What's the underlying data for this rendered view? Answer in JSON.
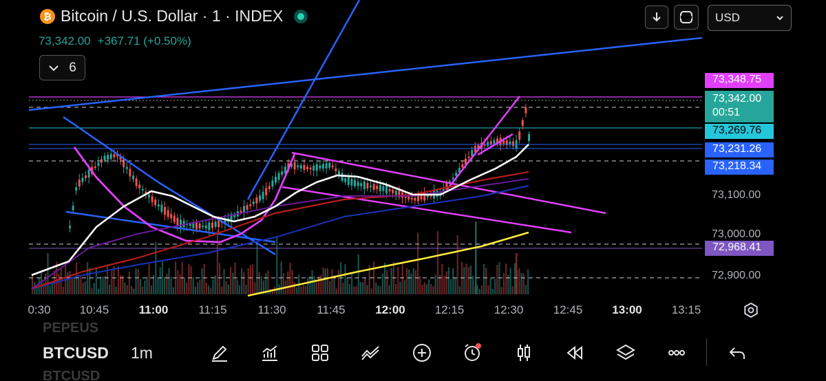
{
  "header": {
    "logo_glyph": "₿",
    "title": "Bitcoin / U.S. Dollar · 1 · INDEX",
    "price": "73,342.00",
    "change": "+367.71 (+0.50%)"
  },
  "indicators_toggle": {
    "count": "6"
  },
  "top_controls": {
    "currency": "USD",
    "download_icon": "download-icon",
    "crosshair_icon": "crosshair-icon"
  },
  "price_labels": [
    {
      "text": "73,348.75",
      "bg": "#e040fb",
      "fg": "#ffffff"
    },
    {
      "text": "73,342.00",
      "sub": "00:51",
      "bg": "#26a69a",
      "fg": "#ffffff"
    },
    {
      "text": "73,269.76",
      "bg": "#26c6da",
      "fg": "#000000"
    },
    {
      "text": "73,231.26",
      "bg": "#2962ff",
      "fg": "#ffffff"
    },
    {
      "text": "73,218.34",
      "bg": "#2962ff",
      "fg": "#ffffff"
    },
    {
      "text": "72,968.41",
      "bg": "#7e57c2",
      "fg": "#ffffff"
    }
  ],
  "price_axis": [
    "73,100.00",
    "73,000.00",
    "72,900.00"
  ],
  "time_axis": [
    {
      "t": "0:30",
      "bold": false
    },
    {
      "t": "10:45",
      "bold": false
    },
    {
      "t": "11:00",
      "bold": true
    },
    {
      "t": "11:15",
      "bold": false
    },
    {
      "t": "11:30",
      "bold": false
    },
    {
      "t": "11:45",
      "bold": false
    },
    {
      "t": "12:00",
      "bold": true
    },
    {
      "t": "12:15",
      "bold": false
    },
    {
      "t": "12:30",
      "bold": false
    },
    {
      "t": "12:45",
      "bold": false
    },
    {
      "t": "13:00",
      "bold": true
    },
    {
      "t": "13:15",
      "bold": false
    }
  ],
  "toolbar": {
    "symbol": "BTCUSD",
    "interval": "1m",
    "ghost_above": "PEPEUS",
    "ghost_below": "BTCUSD",
    "tools": [
      "pencil-icon",
      "chart-icon",
      "grid-icon",
      "drawings-icon",
      "add-icon",
      "alert-icon",
      "candles-icon",
      "replay-icon",
      "layers-icon",
      "more-icon",
      "undo-icon"
    ]
  },
  "colors": {
    "up": "#26a69a",
    "down": "#ef5350",
    "magenta": "#e040fb",
    "blue": "#2962ff",
    "white": "#ffffff",
    "yellow": "#ffeb3b",
    "teal": "#26c6da",
    "purple": "#7e57c2"
  }
}
